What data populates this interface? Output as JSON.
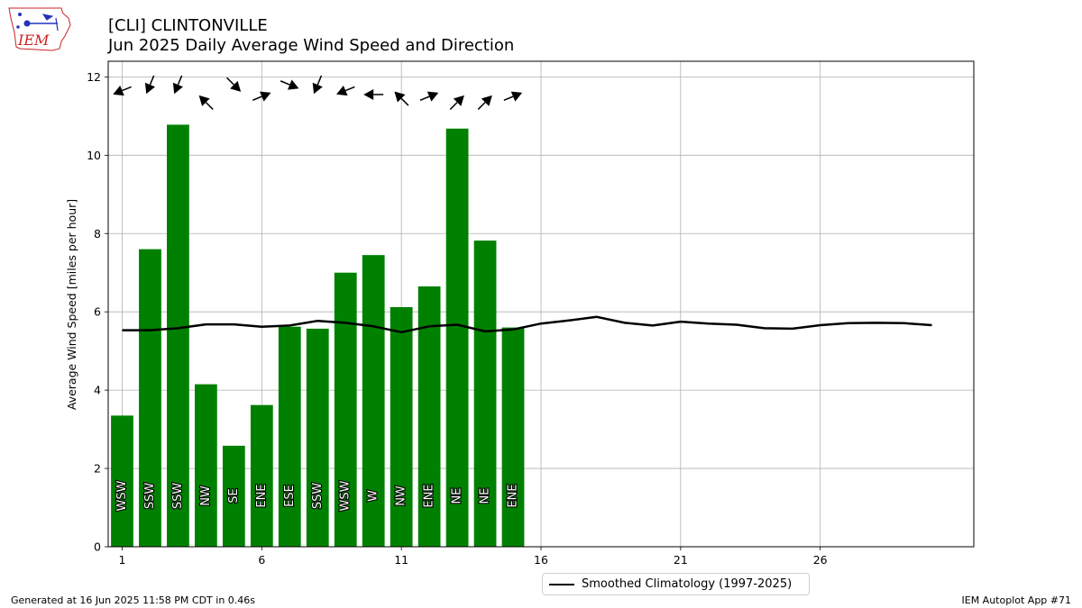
{
  "header": {
    "title_line1": "[CLI] CLINTONVILLE",
    "title_line2": "Jun 2025 Daily Average Wind Speed and Direction",
    "logo_text": "IEM"
  },
  "footer": {
    "generated": "Generated at 16 Jun 2025 11:58 PM CDT in 0.46s",
    "app": "IEM Autoplot App #71"
  },
  "legend": {
    "label": "Smoothed Climatology (1997-2025)"
  },
  "colors": {
    "bar": "#008000",
    "climo": "#000000",
    "grid": "#b0b0b0",
    "logo": "#cc2222"
  },
  "chart_data": {
    "type": "bar",
    "title": "[CLI] CLINTONVILLE\nJun 2025 Daily Average Wind Speed and Direction",
    "xlabel": "",
    "ylabel": "Average Wind Speed [miles per hour]",
    "xlim": [
      0.5,
      31.5
    ],
    "ylim": [
      0,
      12.4
    ],
    "xticks": [
      1,
      6,
      11,
      16,
      21,
      26
    ],
    "yticks": [
      0,
      2,
      4,
      6,
      8,
      10,
      12
    ],
    "grid": true,
    "legend_position": "bottom-center",
    "days": [
      1,
      2,
      3,
      4,
      5,
      6,
      7,
      8,
      9,
      10,
      11,
      12,
      13,
      14,
      15
    ],
    "values": [
      3.35,
      7.6,
      10.78,
      4.15,
      2.58,
      3.62,
      5.62,
      5.57,
      7.0,
      7.45,
      6.12,
      6.65,
      10.68,
      7.82,
      5.6
    ],
    "directions": [
      "WSW",
      "SSW",
      "SSW",
      "NW",
      "SE",
      "ENE",
      "ESE",
      "SSW",
      "WSW",
      "W",
      "NW",
      "ENE",
      "NE",
      "NE",
      "ENE"
    ],
    "arrow_bearing_deg": [
      247.5,
      202.5,
      202.5,
      315,
      135,
      67.5,
      112.5,
      202.5,
      247.5,
      270,
      315,
      67.5,
      45,
      45,
      67.5
    ],
    "arrow_y": [
      11.65,
      11.8,
      11.8,
      11.35,
      11.8,
      11.5,
      11.8,
      11.8,
      11.65,
      11.55,
      11.45,
      11.5,
      11.35,
      11.35,
      11.5
    ],
    "series": [
      {
        "name": "Smoothed Climatology (1997-2025)",
        "x": [
          1,
          2,
          3,
          4,
          5,
          6,
          7,
          8,
          9,
          10,
          11,
          12,
          13,
          14,
          15,
          16,
          17,
          18,
          19,
          20,
          21,
          22,
          23,
          24,
          25,
          26,
          27,
          28,
          29,
          30
        ],
        "values": [
          5.53,
          5.53,
          5.58,
          5.68,
          5.68,
          5.62,
          5.65,
          5.77,
          5.72,
          5.63,
          5.48,
          5.63,
          5.67,
          5.5,
          5.55,
          5.7,
          5.78,
          5.87,
          5.72,
          5.65,
          5.75,
          5.7,
          5.67,
          5.58,
          5.57,
          5.66,
          5.71,
          5.72,
          5.71,
          5.66
        ]
      }
    ]
  }
}
